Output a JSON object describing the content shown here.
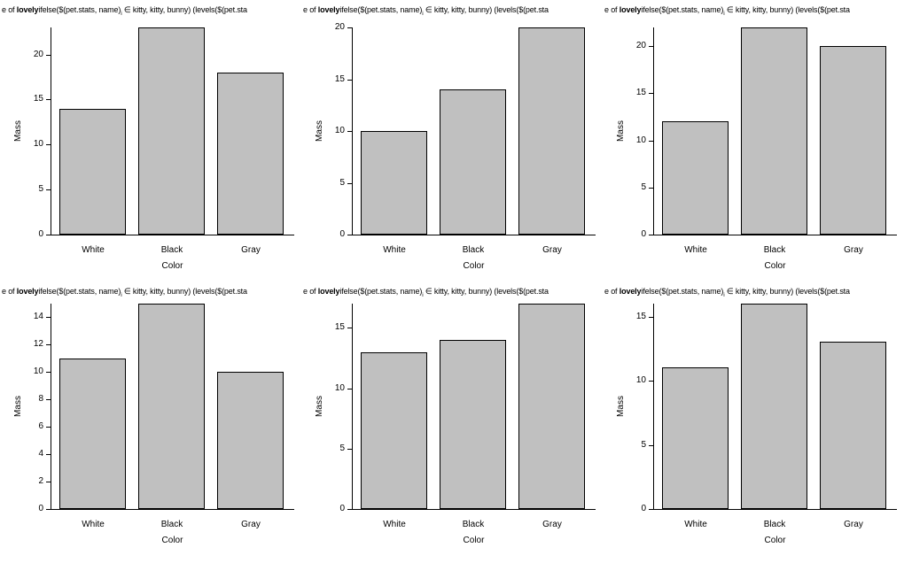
{
  "page": {
    "background_color": "#ffffff",
    "description": "Grid of six base-graphics style bar charts of Mass by pet Color"
  },
  "colors": {
    "bar_fill": "#c0c0c0",
    "bar_border": "#000000",
    "axis": "#000000",
    "text": "#000000"
  },
  "chart_data": {
    "type": "bar",
    "layout": "2 rows x 3 columns",
    "grid": false,
    "legend": false,
    "shared": {
      "title_visible_text": "e of lovelyifelse($(pet.stats, name)i ∈ kitty, kitty, bunny) (levels($(pet.sta",
      "title_parts": {
        "pre": "e of ",
        "bold": "lovely",
        "mid": "ifelse($(pet.stats, name)",
        "sub": "i",
        "post": " ∈ kitty, kitty, bunny) (levels($(pet.sta"
      },
      "xlabel": "Color",
      "ylabel": "Mass",
      "categories": [
        "White",
        "Black",
        "Gray"
      ]
    },
    "subplots": [
      {
        "position": "top-left",
        "values": [
          14,
          23,
          18
        ],
        "ylim": [
          0,
          23
        ],
        "yticks": [
          0,
          5,
          10,
          15,
          20
        ]
      },
      {
        "position": "top-middle",
        "values": [
          10,
          14,
          20
        ],
        "ylim": [
          0,
          20
        ],
        "yticks": [
          0,
          5,
          10,
          15,
          20
        ]
      },
      {
        "position": "top-right",
        "values": [
          12,
          22,
          20
        ],
        "ylim": [
          0,
          22
        ],
        "yticks": [
          0,
          5,
          10,
          15,
          20
        ]
      },
      {
        "position": "bottom-left",
        "values": [
          11,
          15,
          10
        ],
        "ylim": [
          0,
          15
        ],
        "yticks": [
          0,
          2,
          4,
          6,
          8,
          10,
          12,
          14
        ]
      },
      {
        "position": "bottom-middle",
        "values": [
          13,
          14,
          17
        ],
        "ylim": [
          0,
          17
        ],
        "yticks": [
          0,
          5,
          10,
          15
        ]
      },
      {
        "position": "bottom-right",
        "values": [
          11,
          16,
          13
        ],
        "ylim": [
          0,
          16
        ],
        "yticks": [
          0,
          5,
          10,
          15
        ]
      }
    ]
  }
}
